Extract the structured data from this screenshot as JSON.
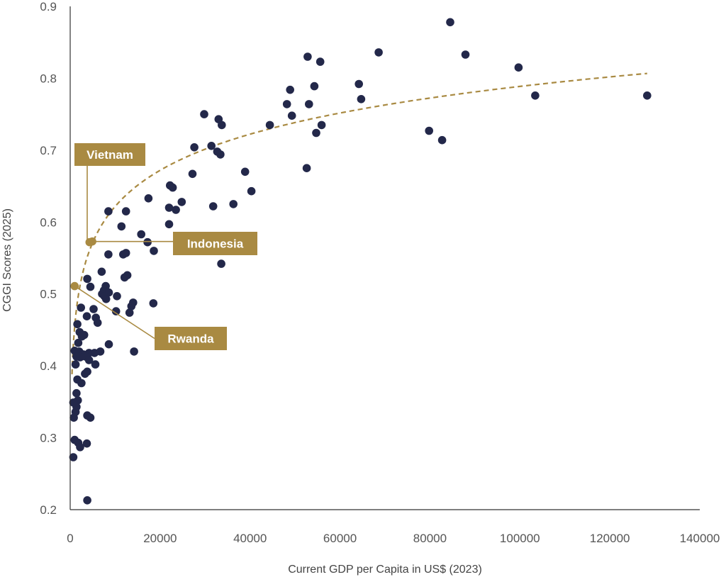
{
  "chart_data": {
    "type": "scatter",
    "xlabel": "Current GDP per Capita in US$ (2023)",
    "ylabel": "CGGI Scores (2025)",
    "xlim": [
      0,
      140000
    ],
    "ylim": [
      0.2,
      0.9
    ],
    "x_ticks": [
      0,
      20000,
      40000,
      60000,
      80000,
      100000,
      120000,
      140000
    ],
    "y_ticks": [
      0.2,
      0.3,
      0.4,
      0.5,
      0.6,
      0.7,
      0.8,
      0.9
    ],
    "grid": false,
    "colors": {
      "points": "#23284a",
      "highlight": "#a98a42",
      "trend": "#a98a42",
      "axis": "#333333"
    },
    "trendline": {
      "type": "logarithmic",
      "style": "dashed",
      "a": 0.0725,
      "b": -0.046
    },
    "highlighted": [
      {
        "label": "Vietnam",
        "x": 4300,
        "y": 0.572
      },
      {
        "label": "Indonesia",
        "x": 4900,
        "y": 0.573
      },
      {
        "label": "Rwanda",
        "x": 1000,
        "y": 0.511
      }
    ],
    "points": [
      [
        84500,
        0.878
      ],
      [
        52800,
        0.83
      ],
      [
        68600,
        0.836
      ],
      [
        87900,
        0.833
      ],
      [
        55600,
        0.823
      ],
      [
        99700,
        0.815
      ],
      [
        64200,
        0.792
      ],
      [
        54300,
        0.789
      ],
      [
        48900,
        0.784
      ],
      [
        103400,
        0.776
      ],
      [
        128300,
        0.776
      ],
      [
        64700,
        0.771
      ],
      [
        48200,
        0.764
      ],
      [
        53100,
        0.764
      ],
      [
        29800,
        0.75
      ],
      [
        49300,
        0.748
      ],
      [
        33000,
        0.743
      ],
      [
        33700,
        0.735
      ],
      [
        55900,
        0.735
      ],
      [
        44400,
        0.735
      ],
      [
        79800,
        0.727
      ],
      [
        54700,
        0.724
      ],
      [
        82700,
        0.714
      ],
      [
        31400,
        0.706
      ],
      [
        27600,
        0.704
      ],
      [
        32700,
        0.698
      ],
      [
        33400,
        0.694
      ],
      [
        52600,
        0.675
      ],
      [
        38900,
        0.67
      ],
      [
        27200,
        0.667
      ],
      [
        22200,
        0.651
      ],
      [
        22800,
        0.648
      ],
      [
        40300,
        0.643
      ],
      [
        17400,
        0.633
      ],
      [
        24800,
        0.628
      ],
      [
        36300,
        0.625
      ],
      [
        31800,
        0.622
      ],
      [
        22000,
        0.62
      ],
      [
        23500,
        0.617
      ],
      [
        8500,
        0.615
      ],
      [
        12400,
        0.615
      ],
      [
        22000,
        0.597
      ],
      [
        11400,
        0.594
      ],
      [
        15800,
        0.583
      ],
      [
        17200,
        0.572
      ],
      [
        18600,
        0.56
      ],
      [
        8500,
        0.555
      ],
      [
        11800,
        0.555
      ],
      [
        12400,
        0.557
      ],
      [
        33600,
        0.542
      ],
      [
        7000,
        0.531
      ],
      [
        12700,
        0.526
      ],
      [
        3800,
        0.521
      ],
      [
        12100,
        0.523
      ],
      [
        4500,
        0.51
      ],
      [
        7900,
        0.511
      ],
      [
        7500,
        0.505
      ],
      [
        8600,
        0.502
      ],
      [
        7100,
        0.5
      ],
      [
        10400,
        0.497
      ],
      [
        7600,
        0.497
      ],
      [
        8000,
        0.493
      ],
      [
        14000,
        0.488
      ],
      [
        18500,
        0.487
      ],
      [
        13600,
        0.483
      ],
      [
        2400,
        0.481
      ],
      [
        5200,
        0.479
      ],
      [
        10200,
        0.476
      ],
      [
        13200,
        0.474
      ],
      [
        3700,
        0.469
      ],
      [
        5700,
        0.467
      ],
      [
        6100,
        0.46
      ],
      [
        1600,
        0.458
      ],
      [
        2100,
        0.447
      ],
      [
        3100,
        0.443
      ],
      [
        2600,
        0.441
      ],
      [
        1800,
        0.432
      ],
      [
        8600,
        0.43
      ],
      [
        1000,
        0.421
      ],
      [
        6700,
        0.42
      ],
      [
        2000,
        0.42
      ],
      [
        14200,
        0.42
      ],
      [
        5400,
        0.418
      ],
      [
        4200,
        0.418
      ],
      [
        2900,
        0.416
      ],
      [
        3400,
        0.413
      ],
      [
        1400,
        0.413
      ],
      [
        2200,
        0.412
      ],
      [
        4200,
        0.408
      ],
      [
        1200,
        0.402
      ],
      [
        5600,
        0.402
      ],
      [
        3800,
        0.392
      ],
      [
        3300,
        0.389
      ],
      [
        1600,
        0.381
      ],
      [
        2500,
        0.376
      ],
      [
        1400,
        0.362
      ],
      [
        1700,
        0.352
      ],
      [
        700,
        0.349
      ],
      [
        1400,
        0.343
      ],
      [
        1200,
        0.336
      ],
      [
        3800,
        0.331
      ],
      [
        4500,
        0.328
      ],
      [
        800,
        0.328
      ],
      [
        1000,
        0.297
      ],
      [
        1800,
        0.293
      ],
      [
        3700,
        0.292
      ],
      [
        2200,
        0.287
      ],
      [
        700,
        0.273
      ],
      [
        3800,
        0.213
      ]
    ]
  }
}
